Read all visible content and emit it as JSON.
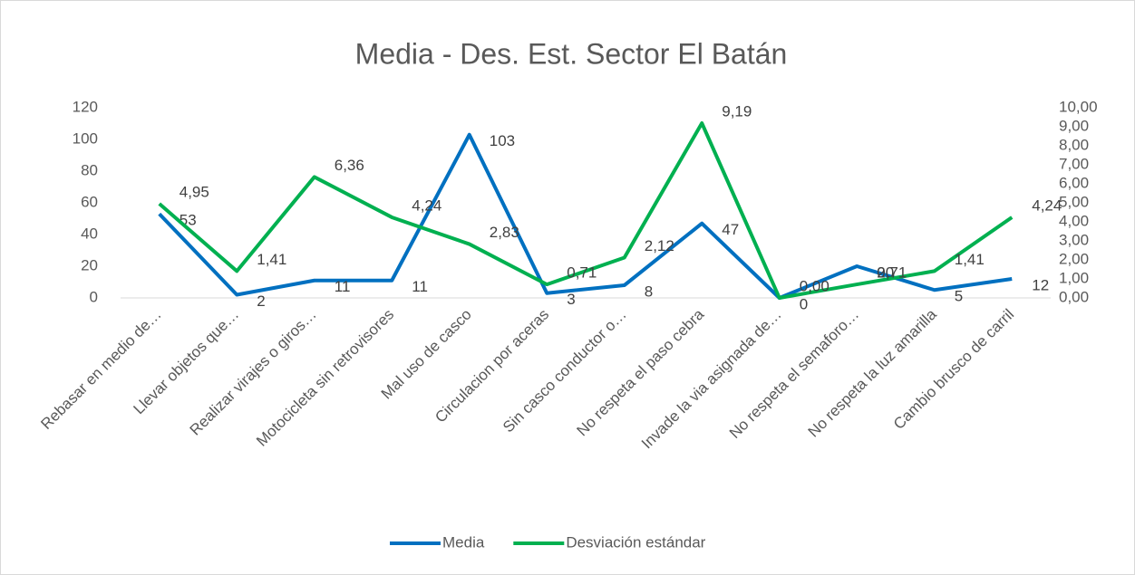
{
  "chart_data": {
    "type": "line",
    "title": "Media - Des. Est. Sector El Batán",
    "categories": [
      "Rebasar en medio de…",
      "Llevar objetos que…",
      "Realizar virajes o giros…",
      "Motocicleta sin retrovisores",
      "Mal uso de casco",
      "Circulacion por aceras",
      "Sin casco conductor o…",
      "No respeta el paso cebra",
      "Invade la via asignada de…",
      "No respeta el semaforo…",
      "No respeta la luz amarilla",
      "Cambio brusco de carril"
    ],
    "series": [
      {
        "name": "Media",
        "color": "#0070c0",
        "values": [
          53,
          2,
          11,
          11,
          103,
          3,
          8,
          47,
          0,
          20,
          5,
          12
        ]
      },
      {
        "name": "Desviación estándar",
        "color": "#00b050",
        "axis": "y2",
        "values": [
          4.95,
          1.41,
          6.36,
          4.24,
          2.83,
          0.71,
          2.12,
          9.19,
          0.0,
          0.71,
          1.41,
          4.24
        ],
        "value_labels": [
          "4,95",
          "1,41",
          "6,36",
          "4,24",
          "2,83",
          "0,71",
          "2,12",
          "9,19",
          "0,00",
          "0,71",
          "1,41",
          "4,24"
        ]
      }
    ],
    "ylim": [
      0,
      120
    ],
    "yticks": [
      0,
      20,
      40,
      60,
      80,
      100,
      120
    ],
    "y2lim": [
      0,
      10
    ],
    "y2ticks": [
      {
        "value": 0,
        "label": "0,00"
      },
      {
        "value": 1,
        "label": "1,00"
      },
      {
        "value": 2,
        "label": "2,00"
      },
      {
        "value": 3,
        "label": "3,00"
      },
      {
        "value": 4,
        "label": "4,00"
      },
      {
        "value": 5,
        "label": "5,00"
      },
      {
        "value": 6,
        "label": "6,00"
      },
      {
        "value": 7,
        "label": "7,00"
      },
      {
        "value": 8,
        "label": "8,00"
      },
      {
        "value": 9,
        "label": "9,00"
      },
      {
        "value": 10,
        "label": "10,00"
      }
    ],
    "legend": "bottom"
  }
}
